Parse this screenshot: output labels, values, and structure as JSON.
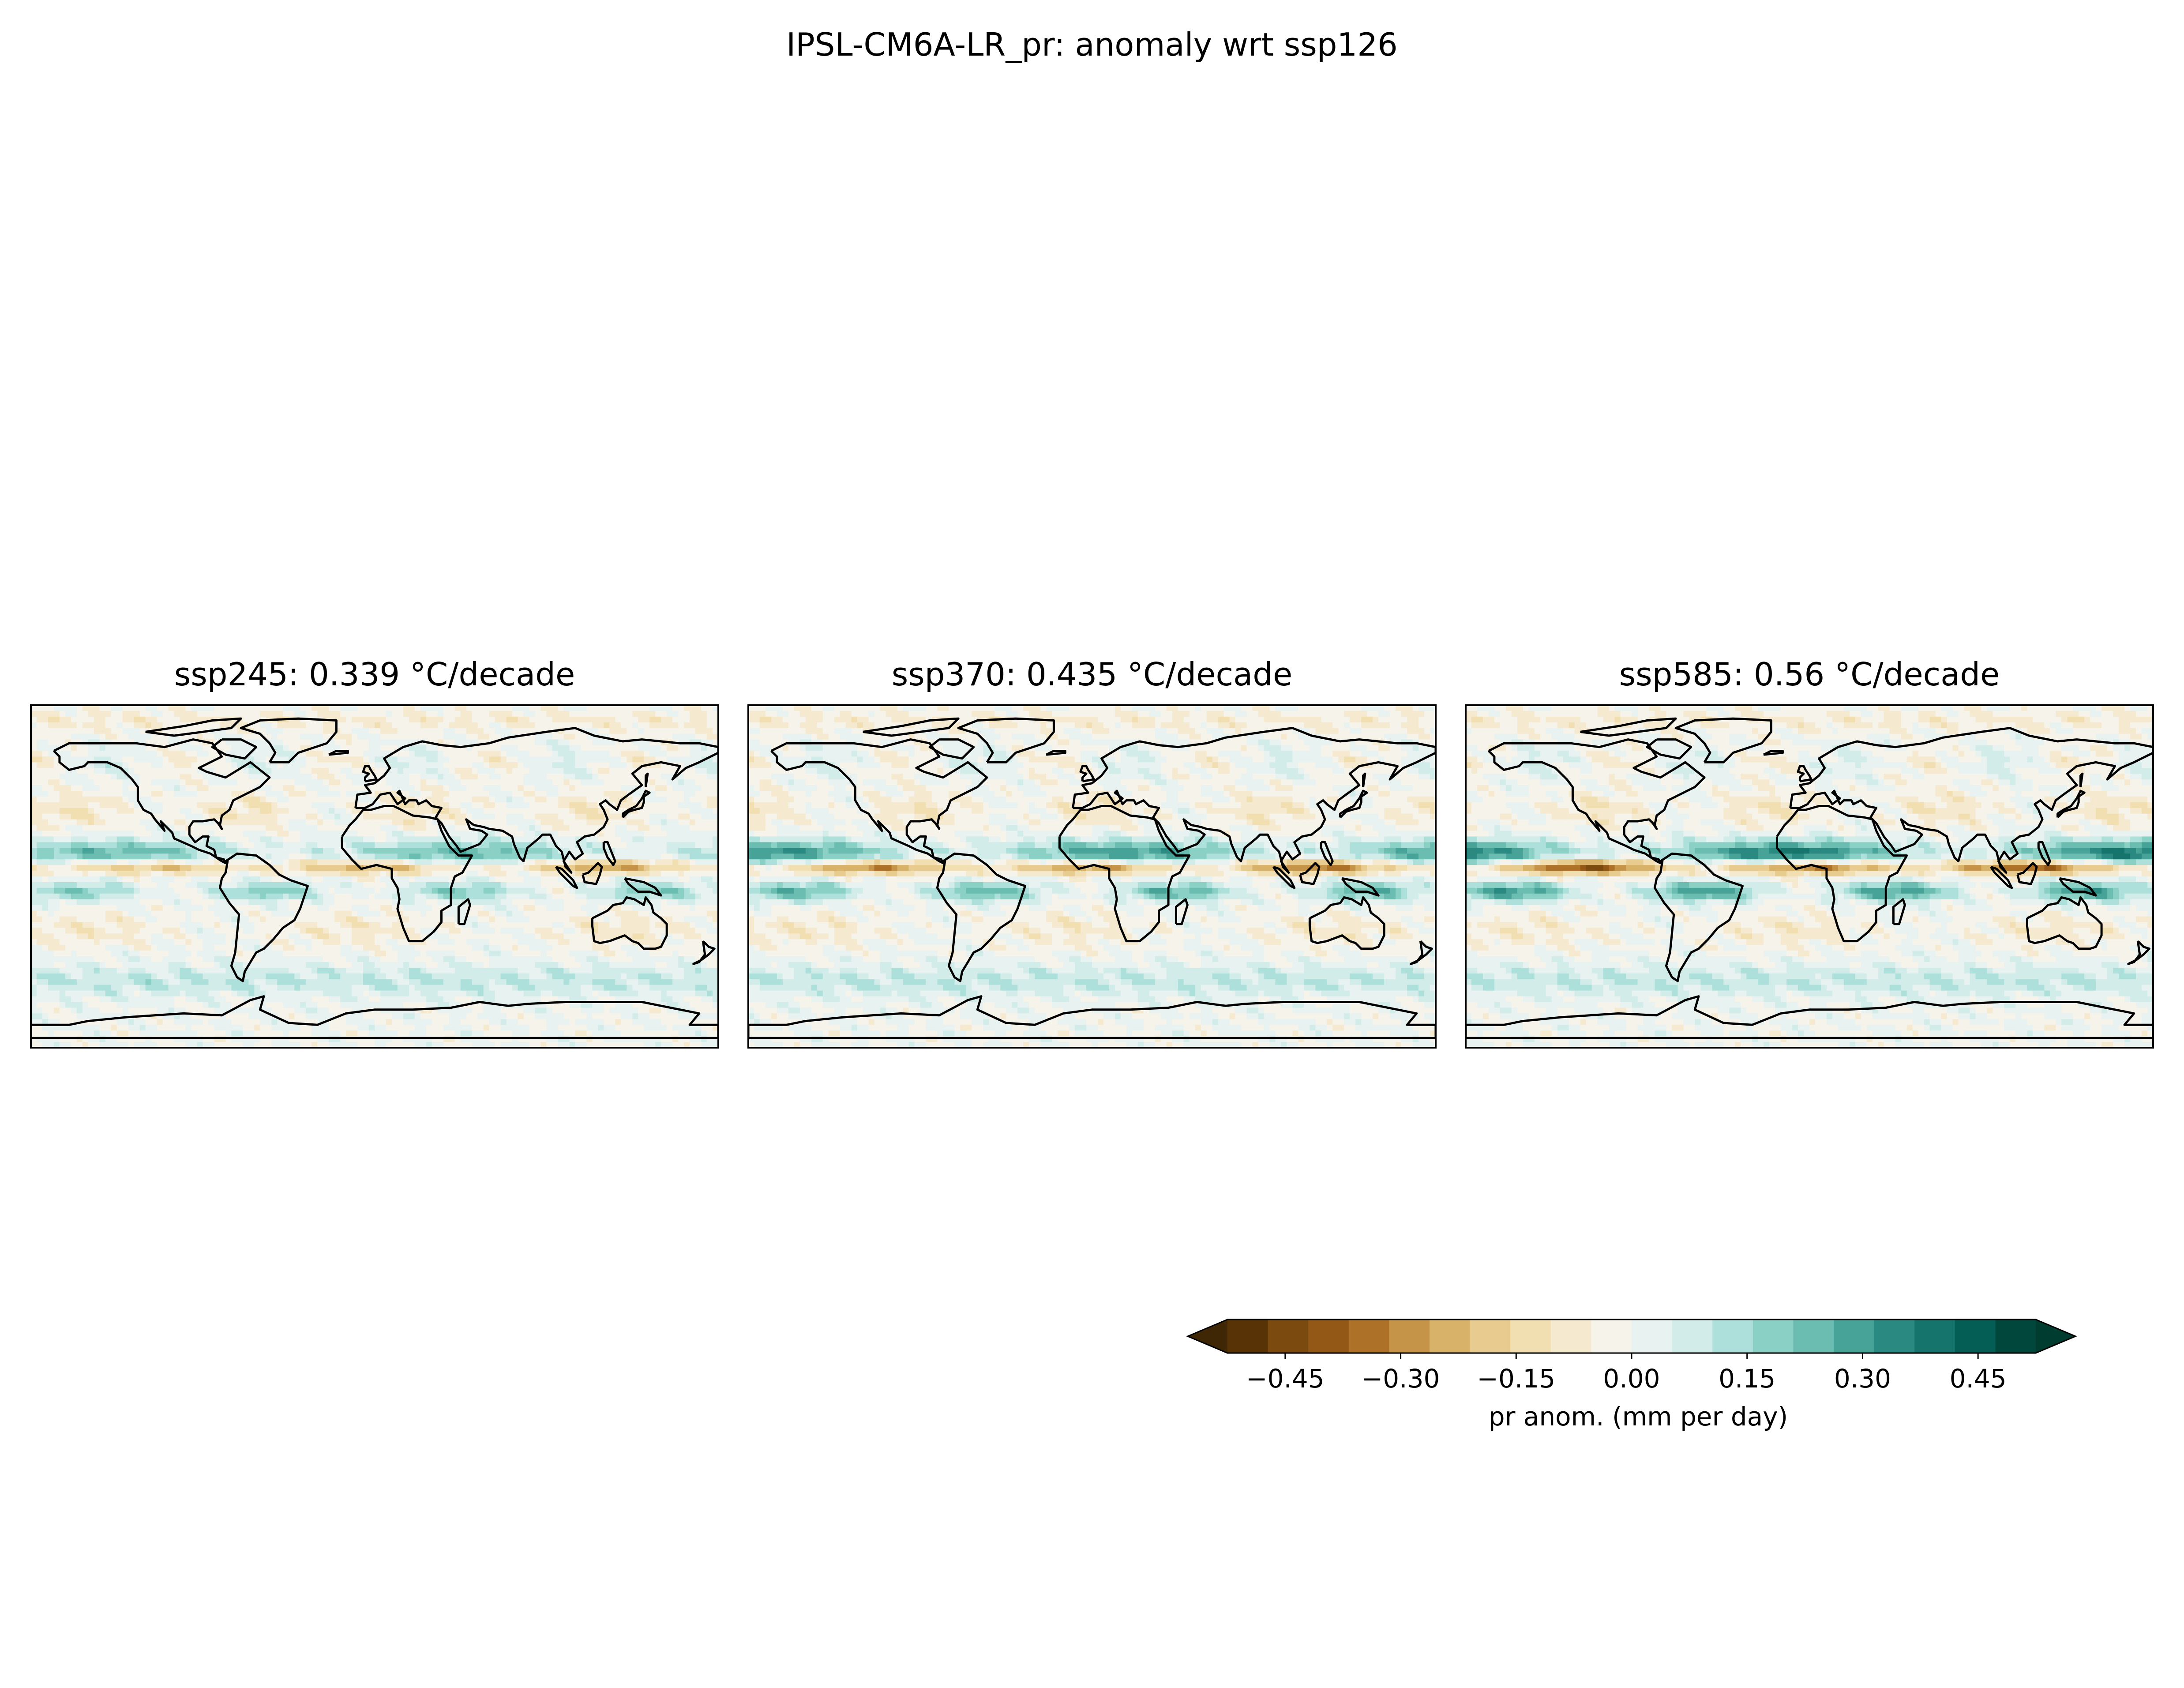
{
  "figure": {
    "suptitle": "IPSL-CM6A-LR_pr: anomaly wrt ssp126"
  },
  "chart_data": {
    "type": "heatmap",
    "projection": "global map (coastlines)",
    "panels": [
      {
        "title": "ssp245: 0.339 °C/decade",
        "scenario": "ssp245",
        "trend": 0.339,
        "units": "°C/decade"
      },
      {
        "title": "ssp370: 0.435 °C/decade",
        "scenario": "ssp370",
        "trend": 0.435,
        "units": "°C/decade"
      },
      {
        "title": "ssp585: 0.56 °C/decade",
        "scenario": "ssp585",
        "trend": 0.56,
        "units": "°C/decade"
      }
    ],
    "colorbar": {
      "label": "pr anom. (mm per day)",
      "range": [
        -0.525,
        0.525
      ],
      "extend": "both",
      "ticks": [
        {
          "value": -0.45,
          "label": "−0.45"
        },
        {
          "value": -0.3,
          "label": "−0.30"
        },
        {
          "value": -0.15,
          "label": "−0.15"
        },
        {
          "value": 0.0,
          "label": "0.00"
        },
        {
          "value": 0.15,
          "label": "0.15"
        },
        {
          "value": 0.3,
          "label": "0.30"
        },
        {
          "value": 0.45,
          "label": "0.45"
        }
      ],
      "colors": [
        "#573305",
        "#7a4a0e",
        "#945816",
        "#ae7128",
        "#c69448",
        "#d9b26a",
        "#e8cc8f",
        "#f1dfb2",
        "#f5e9d0",
        "#f5f3ea",
        "#e8f2f0",
        "#d2ece9",
        "#ade0da",
        "#8bd0c5",
        "#6bbdb1",
        "#47a297",
        "#2a8980",
        "#15746b",
        "#055e55",
        "#01473c"
      ],
      "under_color": "#3f2706",
      "over_color": "#003c30"
    }
  }
}
